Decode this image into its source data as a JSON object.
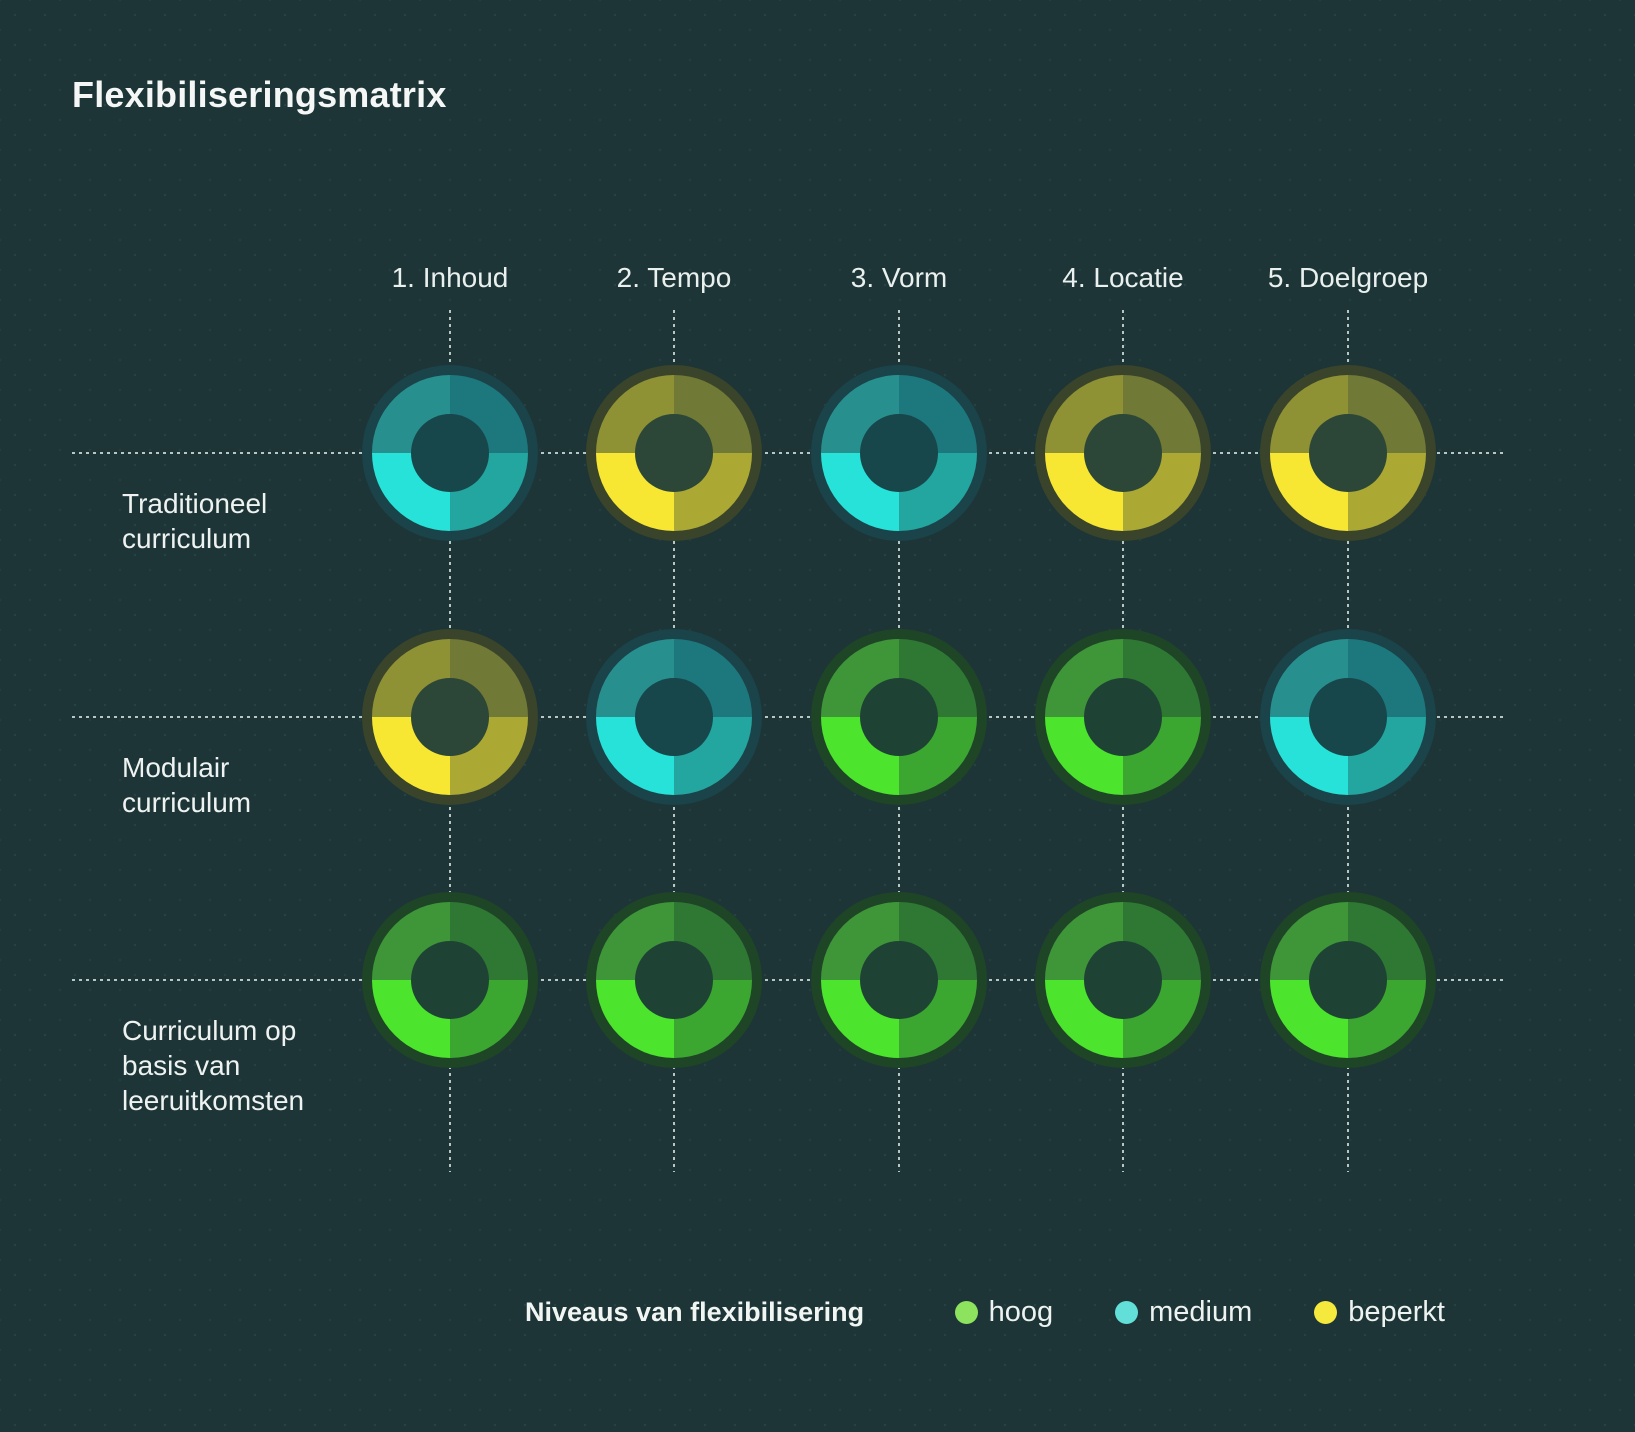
{
  "title": "Flexibiliseringsmatrix",
  "background_color": "#1D3537",
  "columns": [
    "1. Inhoud",
    "2. Tempo",
    "3. Vorm",
    "4. Locatie",
    "5. Doelgroep"
  ],
  "rows": [
    {
      "label_lines": [
        "Traditioneel",
        "curriculum"
      ],
      "levels": [
        "medium",
        "beperkt",
        "medium",
        "beperkt",
        "beperkt"
      ]
    },
    {
      "label_lines": [
        "Modulair",
        "curriculum"
      ],
      "levels": [
        "beperkt",
        "medium",
        "hoog",
        "hoog",
        "medium"
      ]
    },
    {
      "label_lines": [
        "Curriculum op",
        "basis van",
        "leeruitkomsten"
      ],
      "levels": [
        "hoog",
        "hoog",
        "hoog",
        "hoog",
        "hoog"
      ]
    }
  ],
  "levels": {
    "hoog": {
      "label": "hoog",
      "color": "#4CE42C",
      "q_tl": "#3F9639",
      "q_tr": "#2F7833",
      "q_br": "#3CA730",
      "hole": "#1E4334",
      "halo": "#1F4527"
    },
    "medium": {
      "label": "medium",
      "color": "#27E2D8",
      "q_tl": "#27908F",
      "q_tr": "#1D787E",
      "q_br": "#23A5A0",
      "hole": "#17464B",
      "halo": "#1A434A"
    },
    "beperkt": {
      "label": "beperkt",
      "color": "#F7E733",
      "q_tl": "#8F9135",
      "q_tr": "#707935",
      "q_br": "#ABA934",
      "hole": "#2C4638",
      "halo": "#39442A"
    }
  },
  "legend": {
    "title": "Niveaus van flexibilisering",
    "items": [
      {
        "level": "hoog",
        "label": "hoog",
        "color": "#8DE25E"
      },
      {
        "level": "medium",
        "label": "medium",
        "color": "#63DFDA"
      },
      {
        "level": "beperkt",
        "label": "beperkt",
        "color": "#F6E93E"
      }
    ]
  },
  "chart_data": {
    "type": "heatmap",
    "title": "Flexibiliseringsmatrix",
    "x_categories": [
      "1. Inhoud",
      "2. Tempo",
      "3. Vorm",
      "4. Locatie",
      "5. Doelgroep"
    ],
    "y_categories": [
      "Traditioneel curriculum",
      "Modulair curriculum",
      "Curriculum op basis van leeruitkomsten"
    ],
    "values": [
      [
        "medium",
        "beperkt",
        "medium",
        "beperkt",
        "beperkt"
      ],
      [
        "beperkt",
        "medium",
        "hoog",
        "hoog",
        "medium"
      ],
      [
        "hoog",
        "hoog",
        "hoog",
        "hoog",
        "hoog"
      ]
    ],
    "value_scale": [
      "beperkt",
      "medium",
      "hoog"
    ],
    "legend_title": "Niveaus van flexibilisering",
    "legend_entries": [
      "hoog",
      "medium",
      "beperkt"
    ],
    "legend_position": "bottom",
    "grid": "dashed-crosshairs"
  }
}
